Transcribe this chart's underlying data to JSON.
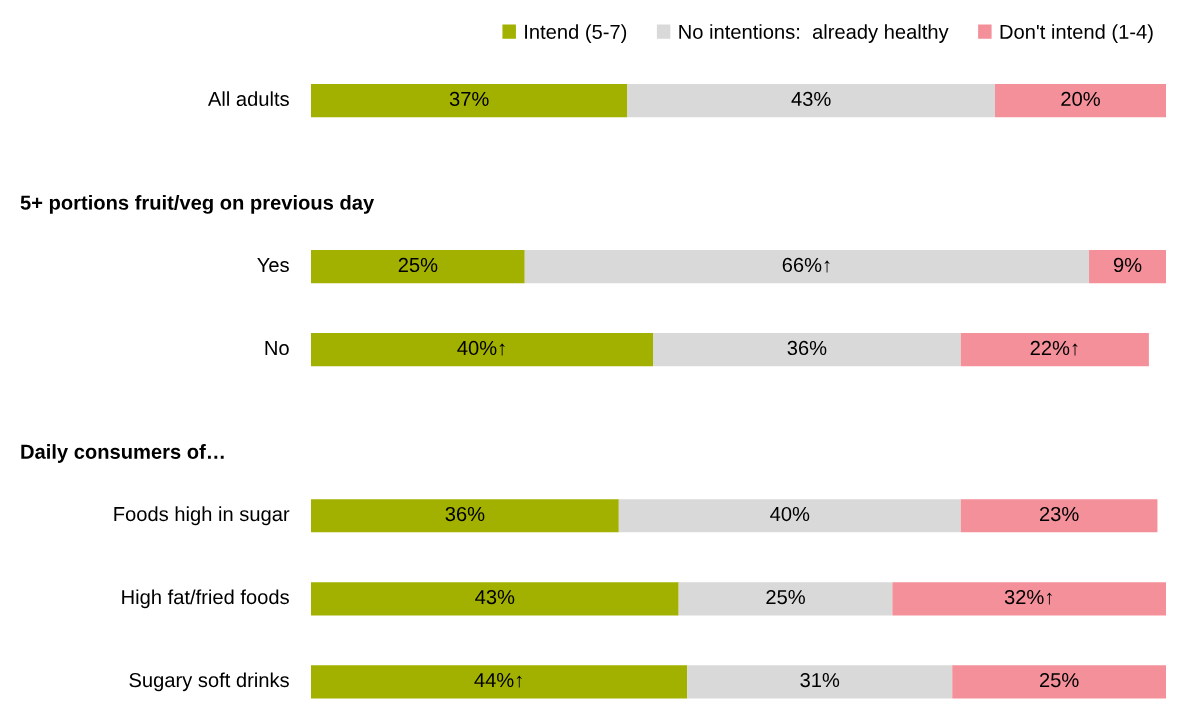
{
  "chart_data": {
    "type": "bar",
    "orientation": "horizontal",
    "stacked": true,
    "categories": [
      "All adults",
      null,
      "Yes",
      "No",
      null,
      "Foods high in sugar",
      "High fat/fried foods",
      "Sugary soft drinks"
    ],
    "series": [
      {
        "name": "Intend (5-7)",
        "color": "#a2b000",
        "values": [
          37,
          null,
          25,
          40,
          null,
          36,
          43,
          44
        ],
        "value_labels": [
          "37%",
          null,
          "25%",
          "40%↑",
          null,
          "36%",
          "43%",
          "44%↑"
        ]
      },
      {
        "name": "No intentions:  already healthy",
        "color": "#d9d9d9",
        "values": [
          43,
          null,
          66,
          36,
          null,
          40,
          25,
          31
        ],
        "value_labels": [
          "43%",
          null,
          "66%↑",
          "36%",
          null,
          "40%",
          "25%",
          "31%"
        ]
      },
      {
        "name": "Don't intend (1-4)",
        "color": "#f4909a",
        "values": [
          20,
          null,
          9,
          22,
          null,
          23,
          32,
          25
        ],
        "value_labels": [
          "20%",
          null,
          "9%",
          "22%↑",
          null,
          "23%",
          "32%↑",
          "25%"
        ]
      }
    ],
    "annotations": [
      "5+ portions fruit/veg on previous day",
      "Daily consumers of…"
    ],
    "legend": "top right",
    "grid": false,
    "tick_labels": false
  }
}
